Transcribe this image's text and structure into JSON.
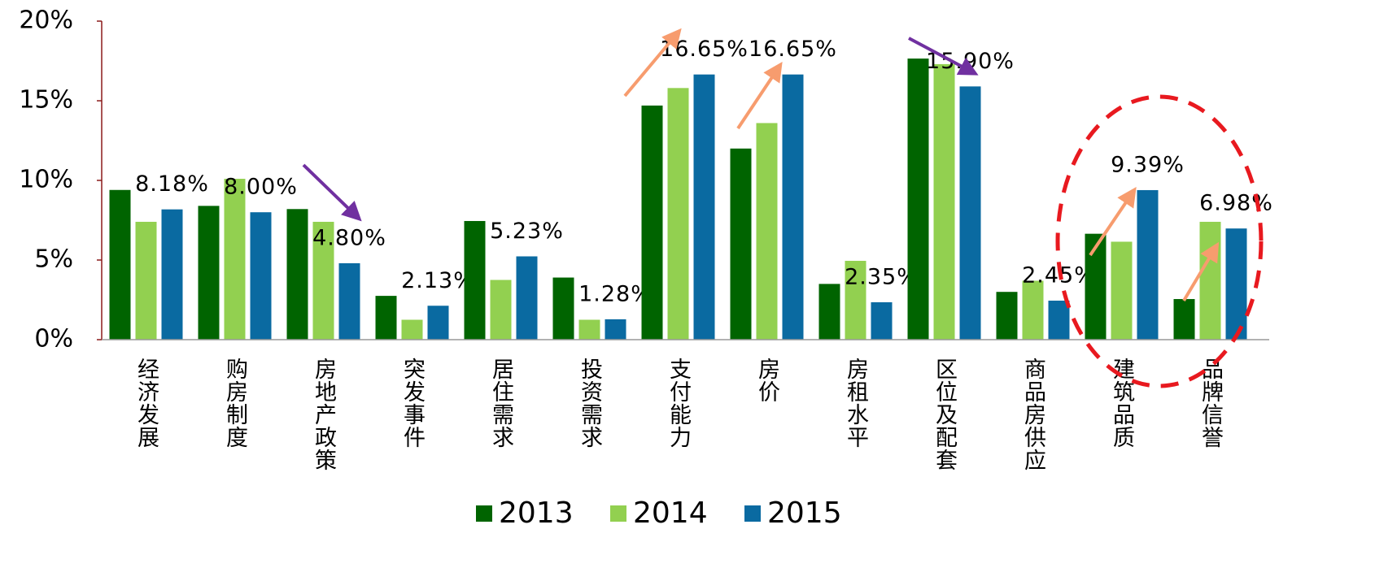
{
  "chart_data": {
    "type": "bar",
    "categories": [
      "经济发展",
      "购房制度",
      "房地产政策",
      "突发事件",
      "居住需求",
      "投资需求",
      "支付能力",
      "房价",
      "房租水平",
      "区位及配套",
      "商品房供应",
      "建筑品质",
      "品牌信誉"
    ],
    "series": [
      {
        "name": "2013",
        "color": "#006400",
        "values": [
          9.4,
          8.4,
          8.2,
          2.75,
          7.45,
          3.9,
          14.7,
          12.0,
          3.5,
          17.65,
          3.0,
          6.65,
          2.55
        ]
      },
      {
        "name": "2014",
        "color": "#92d050",
        "values": [
          7.4,
          10.1,
          7.4,
          1.25,
          3.75,
          1.25,
          15.8,
          13.6,
          4.95,
          17.3,
          3.7,
          6.15,
          7.4
        ]
      },
      {
        "name": "2015",
        "color": "#0a6aa1",
        "values": [
          8.18,
          8.0,
          4.8,
          2.13,
          5.23,
          1.28,
          16.65,
          16.65,
          2.35,
          15.9,
          2.45,
          9.39,
          6.98
        ],
        "value_labels": [
          "8.18%",
          "8.00%",
          "4.80%",
          "2.13%",
          "5.23%",
          "1.28%",
          "16.65%",
          "16.65%",
          "2.35%",
          "15.90%",
          "2.45%",
          "9.39%",
          "6.98%"
        ]
      }
    ],
    "ylim": [
      0,
      20
    ],
    "yticks": [
      {
        "value": 0,
        "label": "0%"
      },
      {
        "value": 5,
        "label": "5%"
      },
      {
        "value": 10,
        "label": "10%"
      },
      {
        "value": 15,
        "label": "15%"
      },
      {
        "value": 20,
        "label": "20%"
      }
    ],
    "legend": "bottom"
  }
}
